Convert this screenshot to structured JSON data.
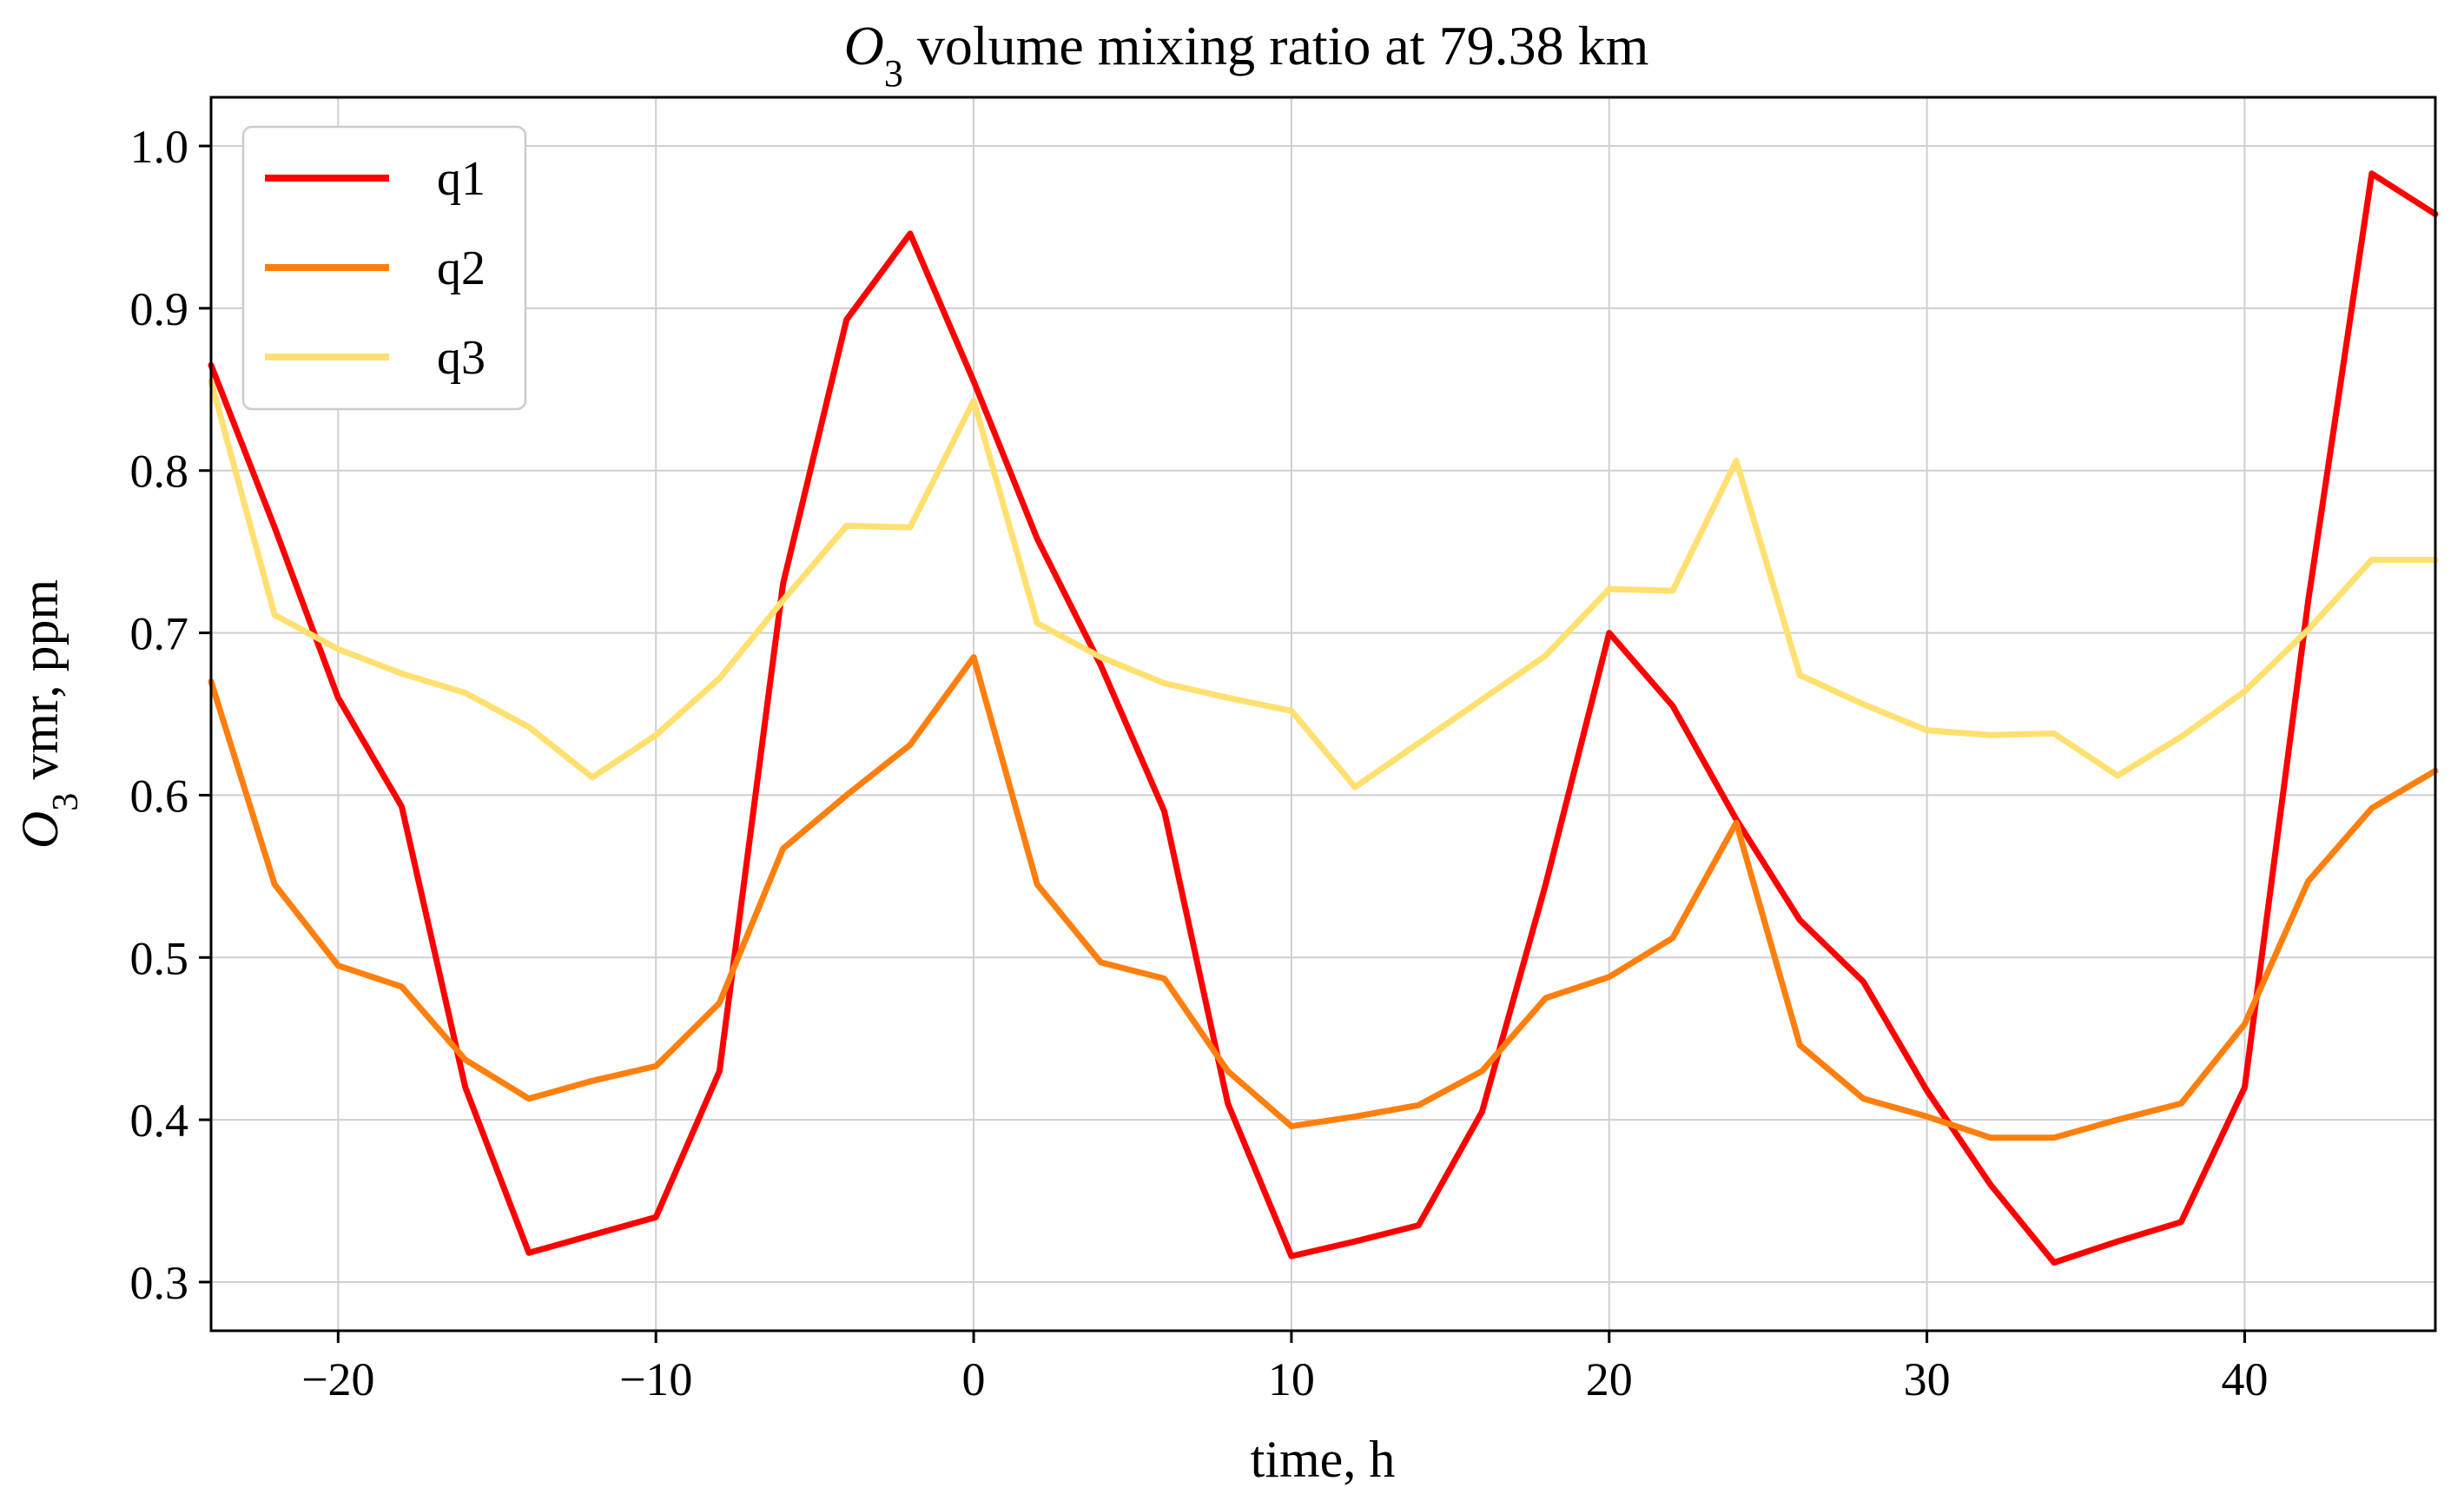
{
  "chart_data": {
    "type": "line",
    "title_prefix": "O",
    "title_subscript": "3",
    "title_rest": " volume mixing ratio at 79.38 km",
    "xlabel": "time, h",
    "ylabel_prefix": "O",
    "ylabel_subscript": "3",
    "ylabel_rest": " vmr, ppm",
    "xlim": [
      -24,
      46
    ],
    "ylim": [
      0.27,
      1.03
    ],
    "xticks": [
      -20,
      -10,
      0,
      10,
      20,
      30,
      40
    ],
    "xtick_labels": [
      "−20",
      "−10",
      "0",
      "10",
      "20",
      "30",
      "40"
    ],
    "yticks": [
      0.3,
      0.4,
      0.5,
      0.6,
      0.7,
      0.8,
      0.9,
      1.0
    ],
    "ytick_labels": [
      "0.3",
      "0.4",
      "0.5",
      "0.6",
      "0.7",
      "0.8",
      "0.9",
      "1.0"
    ],
    "grid": true,
    "legend_position": "top-left",
    "x": [
      -24,
      -22,
      -20,
      -18,
      -16,
      -14,
      -12,
      -10,
      -8,
      -6,
      -4,
      -2,
      0,
      2,
      4,
      6,
      8,
      10,
      12,
      14,
      16,
      18,
      20,
      22,
      24,
      26,
      28,
      30,
      32,
      34,
      36,
      38,
      40,
      42,
      44,
      46
    ],
    "series": [
      {
        "name": "q1",
        "color": "#ff0000",
        "values": [
          0.865,
          0.765,
          0.66,
          0.593,
          0.42,
          0.318,
          0.329,
          0.34,
          0.43,
          0.73,
          0.893,
          0.946,
          0.855,
          0.758,
          0.68,
          0.59,
          0.41,
          0.316,
          0.325,
          0.335,
          0.405,
          0.545,
          0.7,
          0.655,
          0.585,
          0.523,
          0.485,
          0.418,
          0.36,
          0.312,
          0.325,
          0.337,
          0.42,
          0.72,
          0.983,
          0.958
        ]
      },
      {
        "name": "q2",
        "color": "#ff7f0e",
        "values": [
          0.67,
          0.545,
          0.495,
          0.482,
          0.437,
          0.413,
          0.424,
          0.433,
          0.472,
          0.567,
          0.6,
          0.631,
          0.685,
          0.545,
          0.497,
          0.487,
          0.43,
          0.396,
          0.402,
          0.409,
          0.43,
          0.475,
          0.488,
          0.512,
          0.583,
          0.446,
          0.413,
          0.402,
          0.389,
          0.389,
          0.4,
          0.41,
          0.459,
          0.547,
          0.592,
          0.615
        ]
      },
      {
        "name": "q3",
        "color": "#ffe070",
        "values": [
          0.855,
          0.711,
          0.69,
          0.675,
          0.663,
          0.642,
          0.611,
          0.637,
          0.672,
          0.72,
          0.766,
          0.765,
          0.843,
          0.706,
          0.685,
          0.669,
          0.66,
          0.652,
          0.605,
          0.632,
          0.659,
          0.686,
          0.727,
          0.726,
          0.806,
          0.674,
          0.656,
          0.64,
          0.637,
          0.638,
          0.612,
          0.636,
          0.664,
          0.702,
          0.745,
          0.745
        ]
      }
    ]
  }
}
